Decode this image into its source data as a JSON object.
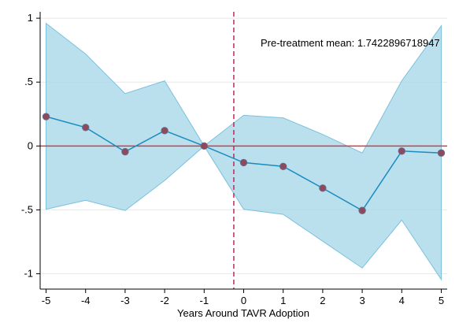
{
  "chart_data": {
    "type": "line",
    "title": "",
    "xlabel": "Years Around TAVR Adoption",
    "ylabel": "",
    "x": [
      -5,
      -4,
      -3,
      -2,
      -1,
      0,
      1,
      2,
      3,
      4,
      5
    ],
    "x_tick_labels": [
      "-5",
      "-4",
      "-3",
      "-2",
      "-1",
      "0",
      "1",
      "2",
      "3",
      "4",
      "5"
    ],
    "y_ticks": [
      1,
      0.5,
      0,
      -0.5,
      -1
    ],
    "y_tick_labels": [
      "1",
      ".5",
      "0",
      "-.5",
      "-1"
    ],
    "xlim": [
      -5.15,
      5.15
    ],
    "ylim": [
      -1.12,
      1.05
    ],
    "series": [
      {
        "values": [
          0.23,
          0.145,
          -0.045,
          0.12,
          0.0,
          -0.13,
          -0.16,
          -0.33,
          -0.505,
          -0.04,
          -0.055
        ],
        "ci_upper": [
          0.96,
          0.72,
          0.41,
          0.51,
          0.0,
          0.24,
          0.22,
          0.09,
          -0.055,
          0.51,
          0.94
        ],
        "ci_lower": [
          -0.495,
          -0.425,
          -0.505,
          -0.27,
          0.0,
          -0.495,
          -0.535,
          -0.745,
          -0.955,
          -0.58,
          -1.045
        ]
      }
    ],
    "reference_line_y": 0,
    "vertical_line_x": -0.25,
    "annotation": "Pre-treatment mean: 1.7422896718947",
    "grid": true,
    "legend": "none",
    "colors": {
      "line": "#1a8cbf",
      "marker_fill": "#8e4a5a",
      "marker_edge": "#6a6a8a",
      "band_fill": "#a9d8ea",
      "band_edge": "#7cc0dc",
      "zero_line": "#d9383f",
      "vline": "#c0285a",
      "grid": "#e8e8e8"
    }
  }
}
